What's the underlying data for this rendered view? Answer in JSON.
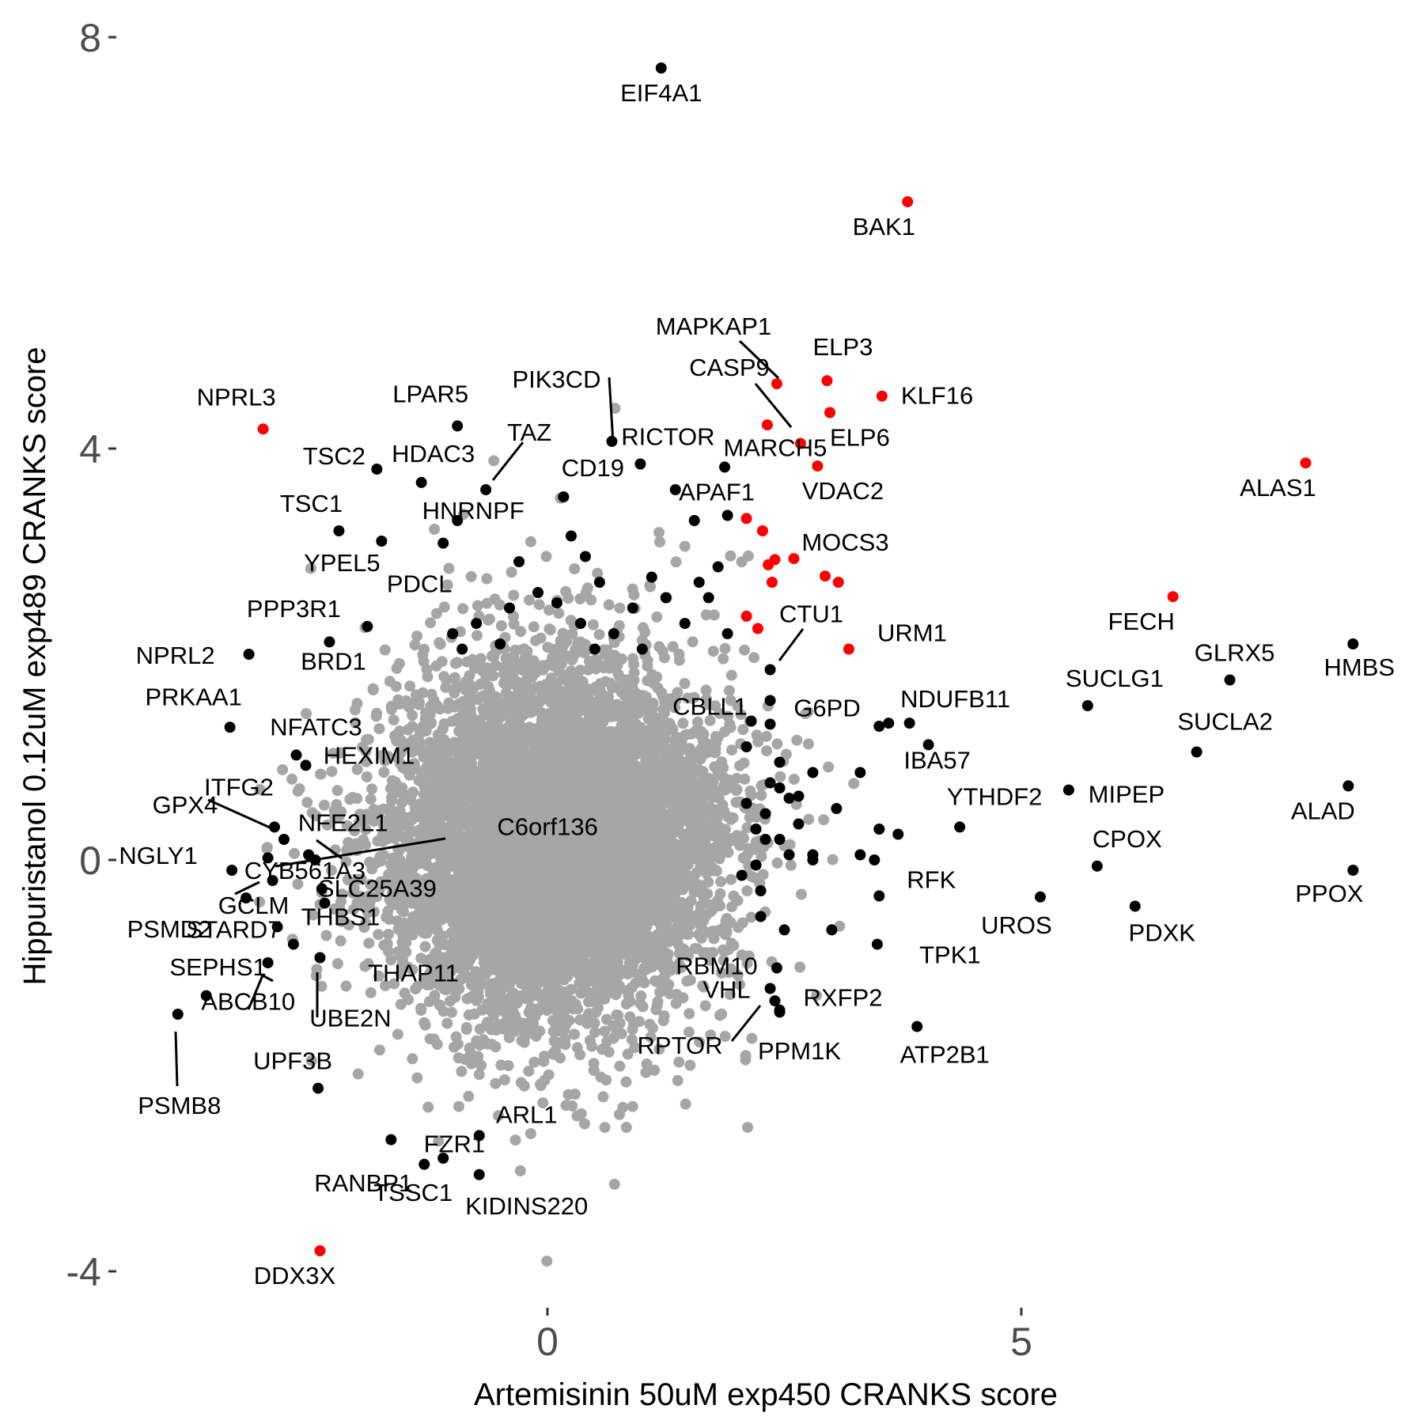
{
  "chart_data": {
    "type": "scatter",
    "xlabel": "Artemisinin 50uM exp450 CRANKS score",
    "ylabel": "Hippuristanol 0.12uM exp489 CRANKS score",
    "xlim": [
      -4.6,
      8.7
    ],
    "ylim": [
      -4.4,
      8.4
    ],
    "x_ticks": [
      0,
      5
    ],
    "y_ticks": [
      -4,
      0,
      4,
      8
    ],
    "grid": false,
    "colors": {
      "background_points": "#a6a6a6",
      "highlight": "#000000",
      "hit": "#ff0000"
    },
    "background_cloud": {
      "center": [
        0.05,
        0.2
      ],
      "sd": [
        0.85,
        0.85
      ],
      "count": 7000,
      "note_seed": 7
    },
    "labeled_points": [
      {
        "label": "EIF4A1",
        "x": 1.2,
        "y": 7.7,
        "color": "black"
      },
      {
        "label": "BAK1",
        "x": 3.8,
        "y": 6.4,
        "color": "red"
      },
      {
        "label": "MAPKAP1",
        "x": 2.42,
        "y": 4.63,
        "color": "red"
      },
      {
        "label": "ELP3",
        "x": 2.95,
        "y": 4.66,
        "color": "red"
      },
      {
        "label": "KLF16",
        "x": 3.53,
        "y": 4.51,
        "color": "red"
      },
      {
        "label": "CASP9",
        "x": 2.32,
        "y": 4.23,
        "color": "red"
      },
      {
        "label": "ELP6",
        "x": 2.98,
        "y": 4.35,
        "color": "red"
      },
      {
        "label": "MARCH5",
        "x": 2.67,
        "y": 4.05,
        "color": "red"
      },
      {
        "label": "VDAC2",
        "x": 2.85,
        "y": 3.83,
        "color": "red"
      },
      {
        "label": "ALAS1",
        "x": 8.0,
        "y": 3.86,
        "color": "red"
      },
      {
        "label": "NPRL3",
        "x": -3.0,
        "y": 4.19,
        "color": "red"
      },
      {
        "label": "LPAR5",
        "x": -0.95,
        "y": 4.22,
        "color": "black"
      },
      {
        "label": "PIK3CD",
        "x": 0.68,
        "y": 4.07,
        "color": "black"
      },
      {
        "label": "RICTOR",
        "x": 0.98,
        "y": 3.85,
        "color": "black"
      },
      {
        "label": "TAZ",
        "x": -0.65,
        "y": 3.6,
        "color": "black"
      },
      {
        "label": "TSC2",
        "x": -1.8,
        "y": 3.8,
        "color": "black"
      },
      {
        "label": "HDAC3",
        "x": -1.33,
        "y": 3.67,
        "color": "black"
      },
      {
        "label": "CD19",
        "x": 0.17,
        "y": 3.53,
        "color": "black"
      },
      {
        "label": "APAF1",
        "x": 1.87,
        "y": 3.82,
        "color": "black"
      },
      {
        "label": "TSC1",
        "x": -2.2,
        "y": 3.2,
        "color": "black"
      },
      {
        "label": "HNRNPF",
        "x": -0.95,
        "y": 3.3,
        "color": "black"
      },
      {
        "label": "YPEL5",
        "x": -1.75,
        "y": 3.1,
        "color": "black"
      },
      {
        "label": "PDCL",
        "x": -1.1,
        "y": 3.08,
        "color": "black"
      },
      {
        "label": "MOCS3",
        "x": 2.6,
        "y": 2.93,
        "color": "red"
      },
      {
        "label": "FECH",
        "x": 6.6,
        "y": 2.56,
        "color": "red"
      },
      {
        "label": "URM1",
        "x": 3.18,
        "y": 2.05,
        "color": "red"
      },
      {
        "label": "CTU1",
        "x": 2.35,
        "y": 1.85,
        "color": "black"
      },
      {
        "label": "G6PD",
        "x": 2.35,
        "y": 1.55,
        "color": "black"
      },
      {
        "label": "PPP3R1",
        "x": -1.9,
        "y": 2.27,
        "color": "black"
      },
      {
        "label": "NPRL2",
        "x": -3.15,
        "y": 2.0,
        "color": "black"
      },
      {
        "label": "BRD1",
        "x": -2.3,
        "y": 2.12,
        "color": "black"
      },
      {
        "label": "GLRX5",
        "x": 7.2,
        "y": 1.75,
        "color": "black"
      },
      {
        "label": "HMBS",
        "x": 8.5,
        "y": 2.1,
        "color": "black"
      },
      {
        "label": "SUCLG1",
        "x": 5.7,
        "y": 1.5,
        "color": "black"
      },
      {
        "label": "NDUFB11",
        "x": 3.82,
        "y": 1.33,
        "color": "black"
      },
      {
        "label": "CBLL1",
        "x": 2.35,
        "y": 1.32,
        "color": "black"
      },
      {
        "label": "IBA57",
        "x": 4.02,
        "y": 1.12,
        "color": "black"
      },
      {
        "label": "SUCLA2",
        "x": 6.85,
        "y": 1.05,
        "color": "black"
      },
      {
        "label": "PRKAA1",
        "x": -3.35,
        "y": 1.29,
        "color": "black"
      },
      {
        "label": "NFATC3",
        "x": -2.65,
        "y": 1.02,
        "color": "black"
      },
      {
        "label": "HEXIM1",
        "x": -2.55,
        "y": 0.92,
        "color": "black"
      },
      {
        "label": "YTHDF2",
        "x": 4.35,
        "y": 0.32,
        "color": "black"
      },
      {
        "label": "MIPEP",
        "x": 5.5,
        "y": 0.68,
        "color": "black"
      },
      {
        "label": "ALAD",
        "x": 8.45,
        "y": 0.72,
        "color": "black"
      },
      {
        "label": "ITFG2",
        "x": -2.88,
        "y": 0.32,
        "color": "black"
      },
      {
        "label": "GPX4",
        "x": -2.78,
        "y": 0.2,
        "color": "black"
      },
      {
        "label": "CYB561A3",
        "x": -2.45,
        "y": 0.0,
        "color": "black"
      },
      {
        "label": "NGLY1",
        "x": -3.33,
        "y": -0.1,
        "color": "black"
      },
      {
        "label": "NFE2L1",
        "x": -2.95,
        "y": 0.02,
        "color": "black"
      },
      {
        "label": "C6orf136",
        "x": -2.52,
        "y": 0.05,
        "color": "black"
      },
      {
        "label": "CPOX",
        "x": 5.8,
        "y": -0.06,
        "color": "black"
      },
      {
        "label": "PPOX",
        "x": 8.5,
        "y": -0.1,
        "color": "black"
      },
      {
        "label": "PSMD2",
        "x": -3.18,
        "y": -0.37,
        "color": "black"
      },
      {
        "label": "GCLM",
        "x": -2.9,
        "y": -0.2,
        "color": "black"
      },
      {
        "label": "SLC25A39",
        "x": -2.38,
        "y": -0.28,
        "color": "black"
      },
      {
        "label": "UROS",
        "x": 5.2,
        "y": -0.36,
        "color": "black"
      },
      {
        "label": "PDXK",
        "x": 6.2,
        "y": -0.45,
        "color": "black"
      },
      {
        "label": "RFK",
        "x": 3.5,
        "y": -0.35,
        "color": "black"
      },
      {
        "label": "THBS1",
        "x": -2.35,
        "y": -0.42,
        "color": "black"
      },
      {
        "label": "STARD7",
        "x": -2.85,
        "y": -0.65,
        "color": "black"
      },
      {
        "label": "TPK1",
        "x": 3.48,
        "y": -0.82,
        "color": "black"
      },
      {
        "label": "THAP11",
        "x": -2.4,
        "y": -0.95,
        "color": "black"
      },
      {
        "label": "UBE2N",
        "x": -2.68,
        "y": -0.82,
        "color": "black"
      },
      {
        "label": "RBM10",
        "x": 2.42,
        "y": -1.05,
        "color": "black"
      },
      {
        "label": "SEPHS1",
        "x": -2.95,
        "y": -1.0,
        "color": "black"
      },
      {
        "label": "ABCB10",
        "x": -3.6,
        "y": -1.32,
        "color": "black"
      },
      {
        "label": "PSMB8",
        "x": -3.9,
        "y": -1.5,
        "color": "black"
      },
      {
        "label": "VHL",
        "x": 2.35,
        "y": -1.25,
        "color": "black"
      },
      {
        "label": "RXFP2",
        "x": 2.45,
        "y": -1.48,
        "color": "black"
      },
      {
        "label": "RPTOR",
        "x": 2.4,
        "y": -1.37,
        "color": "black"
      },
      {
        "label": "PPM1K",
        "x": 2.45,
        "y": -1.46,
        "color": "black"
      },
      {
        "label": "ATP2B1",
        "x": 3.9,
        "y": -1.62,
        "color": "black"
      },
      {
        "label": "UPF3B",
        "x": -2.42,
        "y": -2.22,
        "color": "black"
      },
      {
        "label": "FZR1",
        "x": -1.65,
        "y": -2.72,
        "color": "black"
      },
      {
        "label": "ARL1",
        "x": -0.72,
        "y": -2.68,
        "color": "black"
      },
      {
        "label": "RANBP1",
        "x": -1.3,
        "y": -2.96,
        "color": "black"
      },
      {
        "label": "TSSC1",
        "x": -1.1,
        "y": -2.9,
        "color": "black"
      },
      {
        "label": "KIDINS220",
        "x": -0.72,
        "y": -3.06,
        "color": "black"
      },
      {
        "label": "DDX3X",
        "x": -2.4,
        "y": -3.8,
        "color": "red"
      }
    ],
    "unlabeled_highlight_points": [
      {
        "x": 1.35,
        "y": 3.6,
        "color": "black"
      },
      {
        "x": 1.9,
        "y": 3.35,
        "color": "black"
      },
      {
        "x": 1.55,
        "y": 3.3,
        "color": "black"
      },
      {
        "x": 0.25,
        "y": 3.15,
        "color": "black"
      },
      {
        "x": 2.1,
        "y": 3.32,
        "color": "red"
      },
      {
        "x": 2.27,
        "y": 3.2,
        "color": "red"
      },
      {
        "x": 2.33,
        "y": 2.87,
        "color": "red"
      },
      {
        "x": 2.4,
        "y": 2.92,
        "color": "red"
      },
      {
        "x": 2.93,
        "y": 2.76,
        "color": "red"
      },
      {
        "x": 3.07,
        "y": 2.7,
        "color": "red"
      },
      {
        "x": 2.37,
        "y": 2.7,
        "color": "red"
      },
      {
        "x": 2.1,
        "y": 2.37,
        "color": "red"
      },
      {
        "x": 2.22,
        "y": 2.25,
        "color": "red"
      },
      {
        "x": 0.4,
        "y": 2.95,
        "color": "black"
      },
      {
        "x": 0.55,
        "y": 2.7,
        "color": "black"
      },
      {
        "x": 0.9,
        "y": 2.45,
        "color": "black"
      },
      {
        "x": -0.3,
        "y": 2.9,
        "color": "black"
      },
      {
        "x": -0.1,
        "y": 2.6,
        "color": "black"
      },
      {
        "x": 0.1,
        "y": 2.5,
        "color": "black"
      },
      {
        "x": 0.35,
        "y": 2.3,
        "color": "black"
      },
      {
        "x": 0.7,
        "y": 2.2,
        "color": "black"
      },
      {
        "x": 1.1,
        "y": 2.75,
        "color": "black"
      },
      {
        "x": 1.25,
        "y": 2.55,
        "color": "black"
      },
      {
        "x": 1.6,
        "y": 2.7,
        "color": "black"
      },
      {
        "x": 1.7,
        "y": 2.55,
        "color": "black"
      },
      {
        "x": 1.8,
        "y": 2.85,
        "color": "black"
      },
      {
        "x": 1.45,
        "y": 2.3,
        "color": "black"
      },
      {
        "x": 1.9,
        "y": 2.2,
        "color": "black"
      },
      {
        "x": -0.4,
        "y": 2.45,
        "color": "black"
      },
      {
        "x": -0.75,
        "y": 2.3,
        "color": "black"
      },
      {
        "x": -1.0,
        "y": 2.2,
        "color": "black"
      },
      {
        "x": -0.5,
        "y": 2.1,
        "color": "black"
      },
      {
        "x": 0.5,
        "y": 2.05,
        "color": "black"
      },
      {
        "x": -0.9,
        "y": 2.05,
        "color": "black"
      },
      {
        "x": 1.0,
        "y": 2.05,
        "color": "black"
      },
      {
        "x": 2.15,
        "y": 1.35,
        "color": "black"
      },
      {
        "x": 2.1,
        "y": 1.1,
        "color": "black"
      },
      {
        "x": 2.45,
        "y": 0.95,
        "color": "black"
      },
      {
        "x": 2.35,
        "y": 0.75,
        "color": "black"
      },
      {
        "x": 2.55,
        "y": 0.6,
        "color": "black"
      },
      {
        "x": 2.3,
        "y": 0.45,
        "color": "black"
      },
      {
        "x": 2.65,
        "y": 0.35,
        "color": "black"
      },
      {
        "x": 2.2,
        "y": 0.3,
        "color": "black"
      },
      {
        "x": 2.45,
        "y": 0.2,
        "color": "black"
      },
      {
        "x": 2.8,
        "y": 0.85,
        "color": "black"
      },
      {
        "x": 3.05,
        "y": 0.5,
        "color": "black"
      },
      {
        "x": 3.3,
        "y": 0.85,
        "color": "black"
      },
      {
        "x": 3.5,
        "y": 1.3,
        "color": "black"
      },
      {
        "x": 3.6,
        "y": 1.33,
        "color": "black"
      },
      {
        "x": 3.5,
        "y": 0.3,
        "color": "black"
      },
      {
        "x": 3.7,
        "y": 0.25,
        "color": "black"
      },
      {
        "x": 2.8,
        "y": 0.05,
        "color": "black"
      },
      {
        "x": 2.55,
        "y": 0.05,
        "color": "black"
      },
      {
        "x": 3.3,
        "y": 0.05,
        "color": "black"
      },
      {
        "x": 3.45,
        "y": 0.0,
        "color": "black"
      },
      {
        "x": 2.2,
        "y": -0.05,
        "color": "black"
      },
      {
        "x": 2.05,
        "y": -0.15,
        "color": "black"
      },
      {
        "x": 2.25,
        "y": -0.3,
        "color": "black"
      },
      {
        "x": 2.25,
        "y": -0.55,
        "color": "black"
      },
      {
        "x": 2.5,
        "y": -0.68,
        "color": "black"
      },
      {
        "x": 2.8,
        "y": -0.0,
        "color": "black"
      },
      {
        "x": 3.0,
        "y": -0.68,
        "color": "black"
      },
      {
        "x": 2.45,
        "y": 0.7,
        "color": "black"
      },
      {
        "x": 2.65,
        "y": 0.62,
        "color": "black"
      },
      {
        "x": 2.1,
        "y": 0.55,
        "color": "black"
      },
      {
        "x": 2.3,
        "y": 0.2,
        "color": "black"
      }
    ]
  }
}
